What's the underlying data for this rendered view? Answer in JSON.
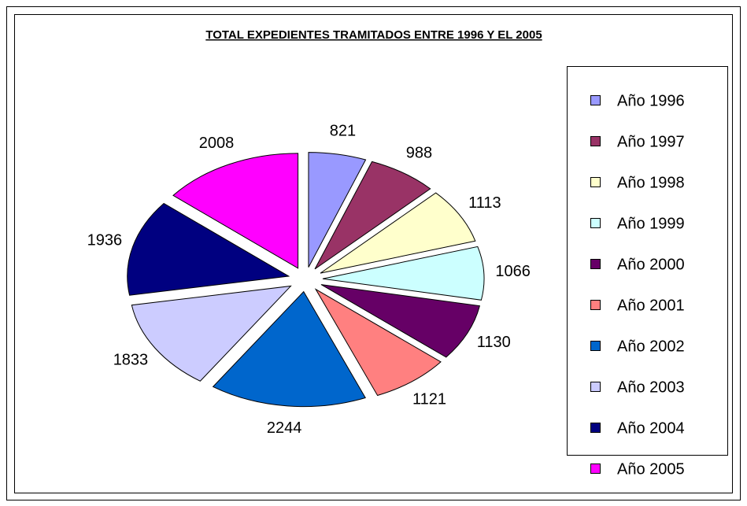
{
  "chart_data": {
    "type": "pie",
    "title": "TOTAL EXPEDIENTES TRAMITADOS ENTRE 1996 Y EL 2005",
    "categories": [
      "Año 1996",
      "Año 1997",
      "Año 1998",
      "Año 1999",
      "Año 2000",
      "Año 2001",
      "Año 2002",
      "Año 2003",
      "Año 2004",
      "Año 2005"
    ],
    "values": [
      821,
      988,
      1113,
      1066,
      1130,
      1121,
      2244,
      1833,
      1936,
      2008
    ],
    "colors": [
      "#9999ff",
      "#993366",
      "#ffffcc",
      "#ccffff",
      "#660066",
      "#ff8080",
      "#0066cc",
      "#ccccff",
      "#000080",
      "#ff00ff"
    ],
    "legend": "right"
  }
}
